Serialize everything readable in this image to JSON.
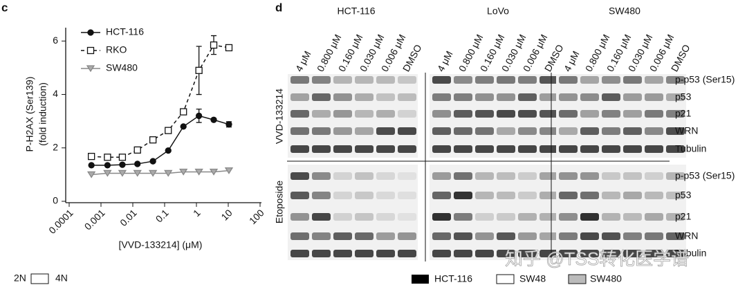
{
  "chart_data": {
    "type": "scatter",
    "panel_label": "c",
    "x_label": "[VVD-133214] (μM)",
    "y_label": [
      "P-H2AX (Ser139)",
      "(fold induction)"
    ],
    "xscale": "log",
    "xlim": [
      0.0001,
      100
    ],
    "xticks": [
      0.0001,
      0.001,
      0.01,
      0.1,
      1,
      10,
      100
    ],
    "ylim": [
      0,
      6.5
    ],
    "yticks": [
      0,
      2,
      4,
      6
    ],
    "legend": "upper left",
    "x": [
      0.0005,
      0.0016,
      0.0047,
      0.014,
      0.043,
      0.13,
      0.39,
      1.2,
      3.5,
      10.5
    ],
    "series": [
      {
        "name": "HCT-116",
        "color": "#111111",
        "values": [
          1.35,
          1.35,
          1.37,
          1.4,
          1.5,
          1.9,
          2.8,
          3.2,
          3.05,
          2.88
        ],
        "errors": [
          null,
          null,
          null,
          null,
          null,
          null,
          null,
          0.25,
          null,
          0.1
        ]
      },
      {
        "name": "RKO",
        "color": "#111111",
        "values": [
          1.68,
          1.65,
          1.65,
          1.92,
          2.3,
          2.65,
          3.35,
          4.9,
          5.85,
          5.75
        ],
        "errors": [
          null,
          null,
          null,
          null,
          null,
          null,
          null,
          0.9,
          0.35,
          null
        ]
      },
      {
        "name": "SW480",
        "color": "#888888",
        "values": [
          1.0,
          1.05,
          1.05,
          1.05,
          1.05,
          1.05,
          1.1,
          1.1,
          1.1,
          1.15
        ],
        "errors": [
          null,
          null,
          null,
          null,
          null,
          null,
          null,
          null,
          null,
          null
        ]
      }
    ]
  },
  "blot": {
    "panel_label": "d",
    "cell_lines": [
      "HCT-116",
      "LoVo",
      "SW480"
    ],
    "lanes": [
      "4 μM",
      "0.800 μM",
      "0.160 μM",
      "0.030 μM",
      "0.006 μM",
      "DMSO"
    ],
    "treatments": [
      "VVD-133214",
      "Etoposide"
    ],
    "proteins": [
      "p-p53 (Ser15)",
      "p53",
      "p21",
      "WRN",
      "Tubulin"
    ]
  },
  "bottom_legend": {
    "left": [
      "2N",
      "4N"
    ],
    "right": [
      "HCT-116",
      "SW48",
      "SW480"
    ]
  },
  "watermark": "知乎 @TSS转化医学谱"
}
